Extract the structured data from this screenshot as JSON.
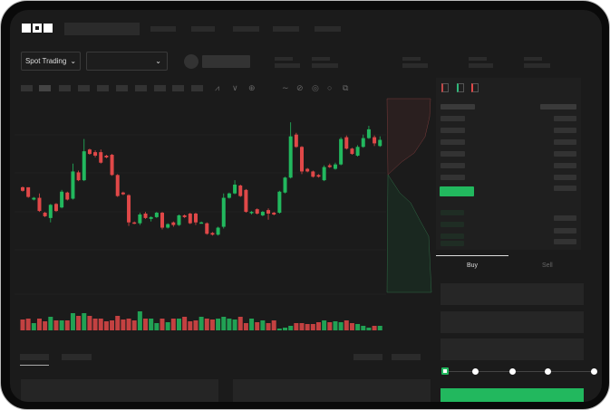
{
  "header": {
    "logo": "OKX"
  },
  "controls": {
    "market_type": "Spot Trading",
    "pair_select": ""
  },
  "trade_panel": {
    "tabs": [
      "Buy",
      "Sell"
    ],
    "active_tab": "Buy",
    "slider_level": 0
  },
  "colors": {
    "up": "#22b85e",
    "down": "#e04848",
    "background": "#1b1b1b",
    "buy_button": "#22b85e"
  },
  "icons": [
    "chevron-down-icon",
    "line-tool-icon",
    "pen-icon",
    "settings-icon",
    "fullscreen-icon",
    "orderbook-both-icon",
    "orderbook-bids-icon",
    "orderbook-asks-icon"
  ],
  "chart_data": {
    "type": "candlestick",
    "candles": [
      [
        97,
        93,
        98,
        92
      ],
      [
        97,
        86,
        97,
        85
      ],
      [
        83,
        85,
        86,
        82
      ],
      [
        85,
        70,
        90,
        69
      ],
      [
        68,
        64,
        69,
        63
      ],
      [
        62,
        77,
        78,
        57
      ],
      [
        78,
        70,
        79,
        69
      ],
      [
        74,
        92,
        94,
        73
      ],
      [
        91,
        83,
        92,
        82
      ],
      [
        84,
        115,
        124,
        83
      ],
      [
        114,
        105,
        116,
        104
      ],
      [
        105,
        138,
        152,
        104
      ],
      [
        140,
        135,
        141,
        134
      ],
      [
        137,
        133,
        139,
        131
      ],
      [
        137,
        125,
        140,
        124
      ],
      [
        133,
        131,
        134,
        130
      ],
      [
        134,
        111,
        135,
        110
      ],
      [
        111,
        87,
        112,
        86
      ],
      [
        91,
        89,
        92,
        88
      ],
      [
        88,
        57,
        89,
        53
      ],
      [
        57,
        56,
        58,
        55
      ],
      [
        56,
        66,
        68,
        54
      ],
      [
        67,
        62,
        69,
        61
      ],
      [
        61,
        63,
        64,
        58
      ],
      [
        63,
        68,
        69,
        62
      ],
      [
        68,
        51,
        69,
        49
      ],
      [
        51,
        55,
        56,
        50
      ],
      [
        57,
        54,
        58,
        52
      ],
      [
        54,
        65,
        66,
        53
      ],
      [
        65,
        63,
        66,
        62
      ],
      [
        67,
        56,
        68,
        55
      ],
      [
        67,
        57,
        68,
        54
      ],
      [
        57,
        57,
        58,
        56
      ],
      [
        56,
        44,
        57,
        43
      ],
      [
        45,
        43,
        46,
        42
      ],
      [
        43,
        51,
        52,
        42
      ],
      [
        52,
        85,
        90,
        50
      ],
      [
        85,
        90,
        91,
        84
      ],
      [
        90,
        100,
        105,
        89
      ],
      [
        99,
        87,
        100,
        86
      ],
      [
        94,
        69,
        95,
        68
      ],
      [
        68,
        69,
        70,
        66
      ],
      [
        72,
        67,
        73,
        66
      ],
      [
        65,
        69,
        70,
        64
      ],
      [
        71,
        67,
        73,
        60
      ],
      [
        68,
        66,
        69,
        65
      ],
      [
        68,
        92,
        93,
        67
      ],
      [
        91,
        108,
        109,
        90
      ],
      [
        108,
        155,
        171,
        107
      ],
      [
        157,
        143,
        159,
        142
      ],
      [
        143,
        115,
        144,
        112
      ],
      [
        118,
        115,
        119,
        114
      ],
      [
        115,
        109,
        116,
        108
      ],
      [
        111,
        109,
        112,
        108
      ],
      [
        105,
        120,
        122,
        104
      ],
      [
        122,
        120,
        124,
        119
      ],
      [
        118,
        123,
        125,
        117
      ],
      [
        123,
        152,
        154,
        122
      ],
      [
        154,
        141,
        156,
        140
      ],
      [
        141,
        135,
        142,
        134
      ],
      [
        133,
        143,
        145,
        132
      ],
      [
        143,
        153,
        157,
        142
      ],
      [
        153,
        163,
        167,
        152
      ],
      [
        154,
        147,
        156,
        144
      ],
      [
        144,
        151,
        155,
        143
      ]
    ],
    "volume": [
      12,
      13,
      8,
      13,
      10,
      15,
      11,
      11,
      11,
      19,
      16,
      19,
      16,
      13,
      13,
      10,
      11,
      16,
      12,
      13,
      11,
      21,
      13,
      13,
      8,
      13,
      9,
      13,
      13,
      15,
      10,
      11,
      15,
      13,
      12,
      13,
      15,
      13,
      12,
      15,
      8,
      13,
      9,
      11,
      8,
      11,
      2,
      3,
      5,
      8,
      8,
      7,
      7,
      9,
      11,
      9,
      10,
      9,
      11,
      8,
      7,
      5,
      3,
      5,
      5
    ]
  }
}
